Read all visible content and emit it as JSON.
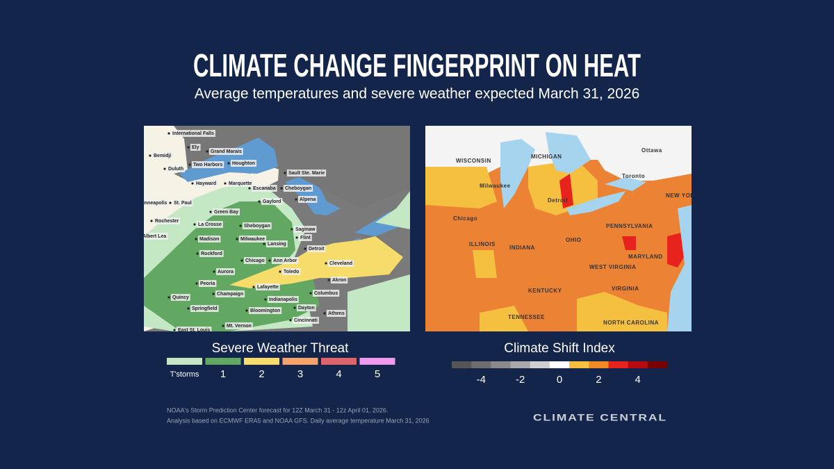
{
  "title": "CLIMATE CHANGE FINGERPRINT ON HEAT",
  "subtitle": "Average temperatures and severe weather expected March 31, 2026",
  "severe_map": {
    "cities": [
      "International Falls",
      "Ely",
      "Grand Marais",
      "Bemidji",
      "Two Harbors",
      "Houghton",
      "Duluth",
      "Sault Ste. Marie",
      "Hayward",
      "Marquette",
      "Escanaba",
      "Cheboygan",
      "Minneapolis",
      "St. Paul",
      "Gaylord",
      "Alpena",
      "Green Bay",
      "Rochester",
      "La Crosse",
      "Sheboygan",
      "Saginaw",
      "Flint",
      "Albert Lea",
      "Madison",
      "Milwaukee",
      "Lansing",
      "Detroit",
      "Rockford",
      "Chicago",
      "Ann Arbor",
      "Cleveland",
      "Toledo",
      "Aurora",
      "Akron",
      "Peoria",
      "Lafayette",
      "Quincy",
      "Champaign",
      "Columbus",
      "Indianapolis",
      "Springfield",
      "Bloomington",
      "Dayton",
      "Athens",
      "Cincinnati",
      "Mt. Vernon",
      "East St. Louis"
    ]
  },
  "csi_map": {
    "labels": [
      "WISCONSIN",
      "MICHIGAN",
      "Ottawa",
      "Toronto",
      "Milwaukee",
      "Detroit",
      "NEW YORK",
      "Chicago",
      "PENNSYLVANIA",
      "ILLINOIS",
      "INDIANA",
      "OHIO",
      "MARYLAND",
      "WEST VIRGINIA",
      "VIRGINIA",
      "KENTUCKY",
      "TENNESSEE",
      "NORTH CAROLINA"
    ]
  },
  "severe_legend": {
    "title": "Severe Weather Threat",
    "categories": [
      "T'storms",
      "1",
      "2",
      "3",
      "4",
      "5"
    ],
    "colors": [
      "#c3e8c3",
      "#62a862",
      "#f6dc6a",
      "#f7a46c",
      "#df636b",
      "#ee9bee"
    ]
  },
  "csi_legend": {
    "title": "Climate Shift Index",
    "range": [
      -5,
      5
    ],
    "ticks": [
      -4,
      -2,
      0,
      2,
      4
    ],
    "colors": [
      "#555555",
      "#6e6e6e",
      "#8a8a8a",
      "#a9a9a9",
      "#cfcfcf",
      "#ffffff",
      "#f5c040",
      "#f08a24",
      "#e8221c",
      "#b8090f",
      "#7a0000"
    ]
  },
  "footnote": [
    "NOAA's Storm Prediction Center forecast for 12Z March 31 - 12z April 01, 2026.",
    "Analysis based on ECMWF ERA5 and NOAA GFS. Daily average temperature March 31, 2026"
  ],
  "logo": "CLIMATE CENTRAL"
}
